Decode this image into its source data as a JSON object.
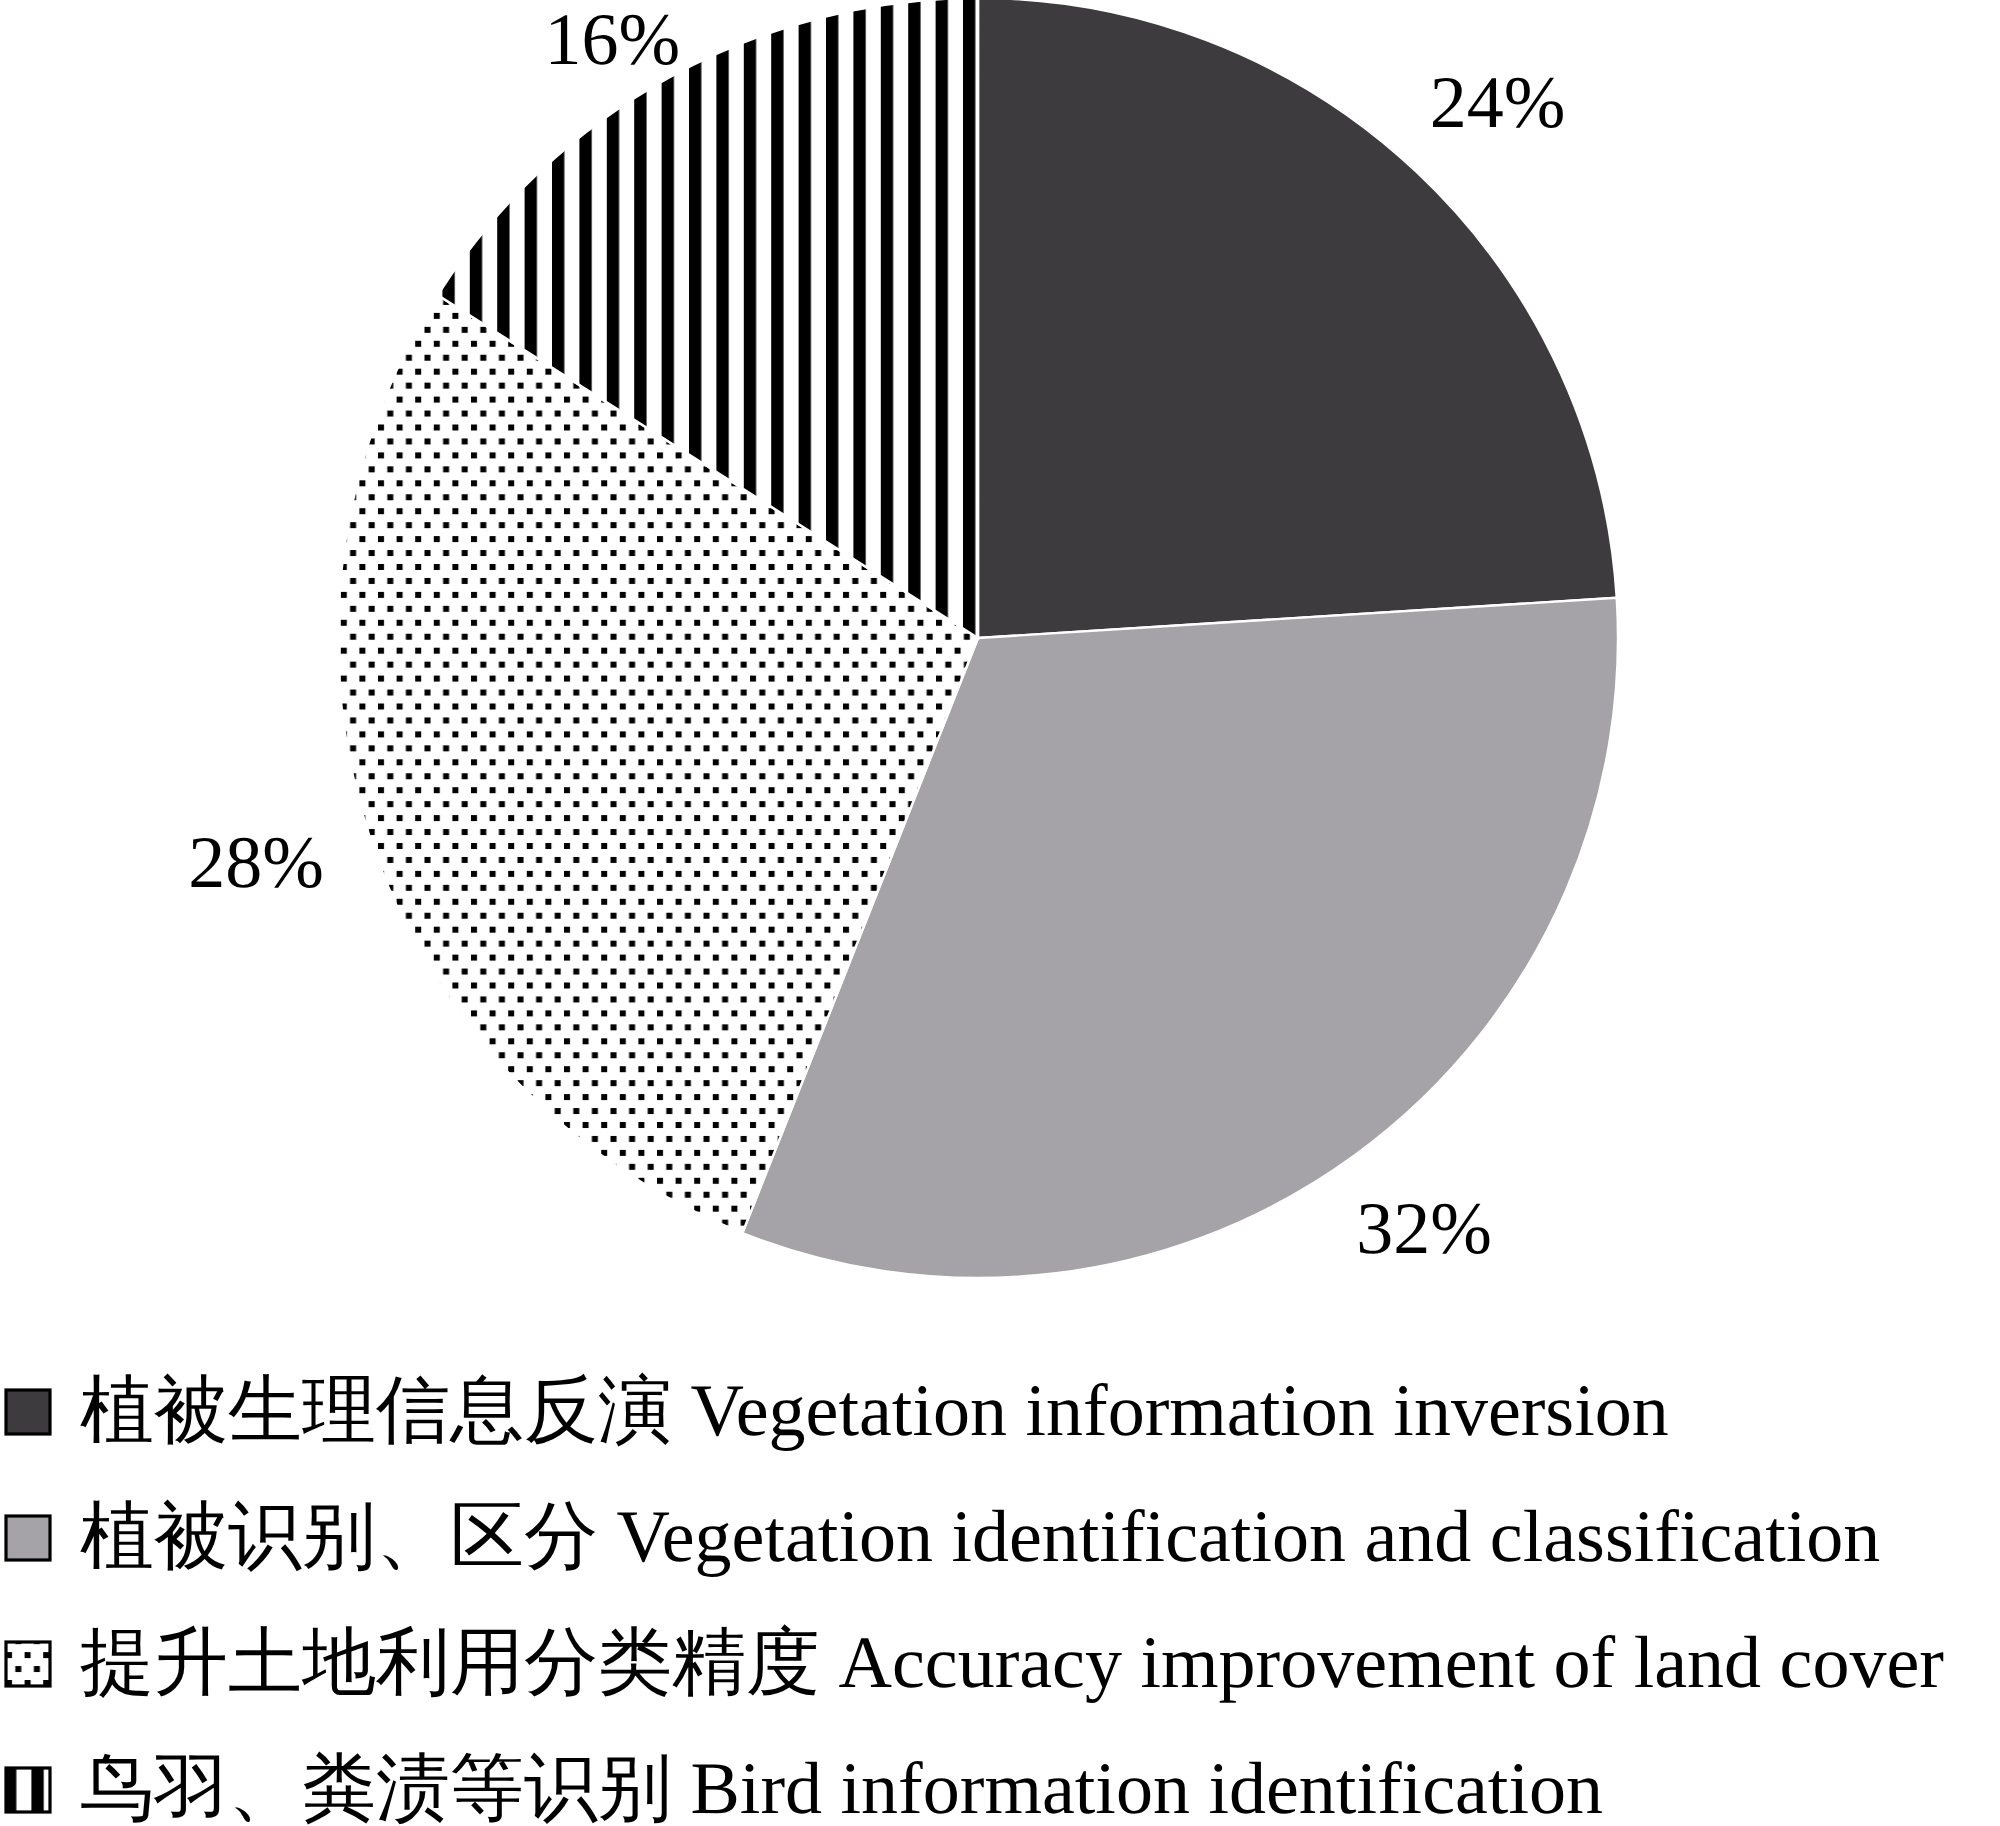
{
  "chart_data": {
    "type": "pie",
    "categories": [
      "植被生理信息反演 Vegetation information inversion",
      "植被识别、区分 Vegetation identification and classification",
      "提升土地利用分类精度 Accuracy improvement of land cover",
      "鸟羽、粪渍等识别 Bird information identification"
    ],
    "values": [
      24,
      32,
      28,
      16
    ],
    "colors": [
      "#3d3b3e",
      "#a5a3a7",
      "#ffffff",
      "#ffffff"
    ],
    "value_labels": [
      "24%",
      "32%",
      "28%",
      "16%"
    ],
    "legend": "bottom"
  }
}
